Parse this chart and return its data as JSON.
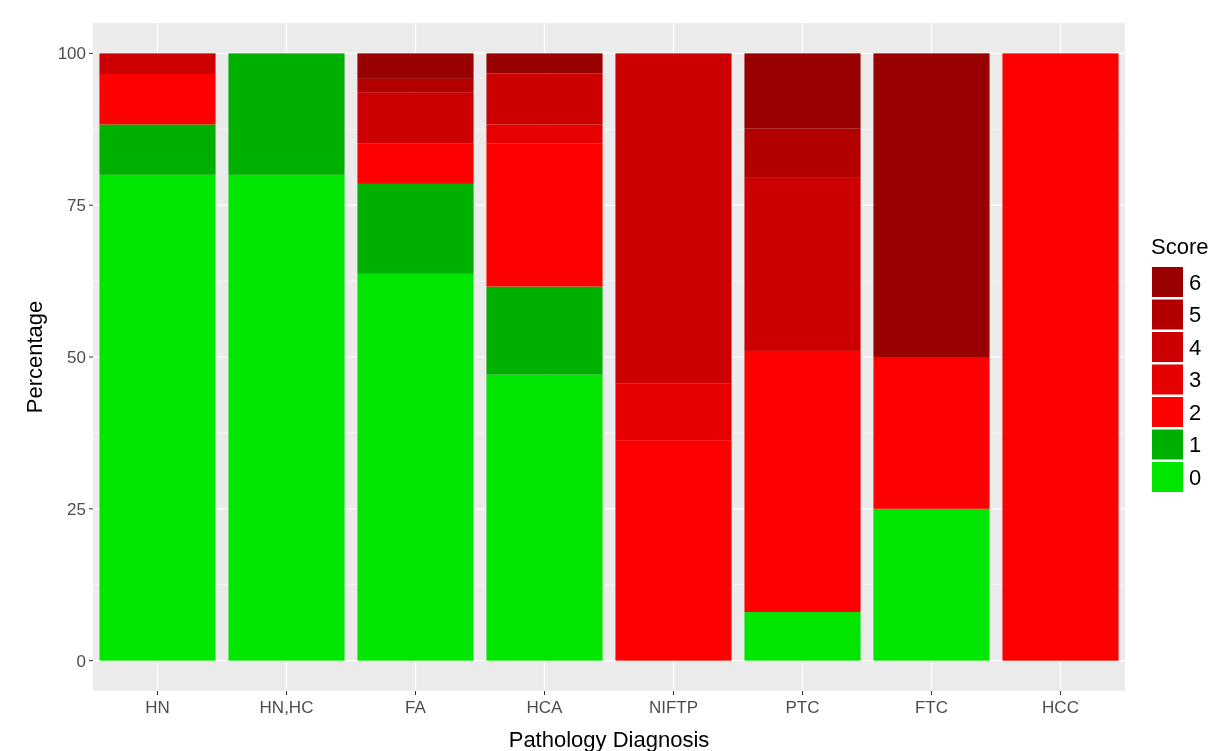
{
  "chart_data": {
    "type": "bar",
    "xlabel": "Pathology Diagnosis",
    "ylabel": "Percentage",
    "legend_title": "Score",
    "categories": [
      "HN",
      "HN,HC",
      "FA",
      "HCA",
      "NIFTP",
      "PTC",
      "FTC",
      "HCC"
    ],
    "stacked": true,
    "ylim": [
      -5,
      105
    ],
    "yticks": [
      0,
      25,
      50,
      75,
      100
    ],
    "grid": true,
    "legend": "right",
    "series": [
      {
        "name": "0",
        "color": "#00e600",
        "values": [
          80,
          80,
          63.7,
          47.1,
          0,
          8,
          25,
          0
        ]
      },
      {
        "name": "1",
        "color": "#00b000",
        "values": [
          8.3,
          20,
          14.8,
          14.5,
          0,
          0,
          0,
          0
        ]
      },
      {
        "name": "2",
        "color": "#ff0000",
        "values": [
          8.3,
          0,
          6.7,
          23.6,
          36.3,
          43,
          25,
          100
        ]
      },
      {
        "name": "3",
        "color": "#e60000",
        "values": [
          0,
          0,
          0,
          3.1,
          9.3,
          0,
          0,
          0
        ]
      },
      {
        "name": "4",
        "color": "#cc0000",
        "values": [
          3.4,
          0,
          8.4,
          8.4,
          54.4,
          28.5,
          0,
          0
        ]
      },
      {
        "name": "5",
        "color": "#b20000",
        "values": [
          0,
          0,
          2.2,
          0,
          0,
          8.1,
          0,
          0
        ]
      },
      {
        "name": "6",
        "color": "#990000",
        "values": [
          0,
          0,
          4.2,
          3.3,
          0,
          12.4,
          50,
          0
        ]
      }
    ]
  }
}
